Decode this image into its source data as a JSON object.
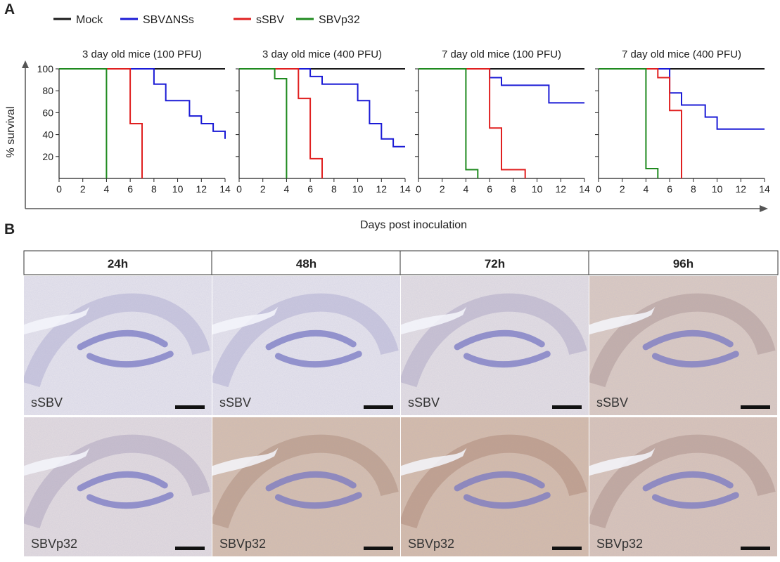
{
  "panels": {
    "a_letter": "A",
    "b_letter": "B"
  },
  "legend": [
    {
      "name": "Mock",
      "color": "#1a1a1a"
    },
    {
      "name": "SBVΔNSs",
      "color": "#1b1bd6"
    },
    {
      "name": "sSBV",
      "color": "#e02020"
    },
    {
      "name": "SBVp32",
      "color": "#1f8a1f"
    }
  ],
  "axes": {
    "ylabel": "% survival",
    "xlabel": "Days post inoculation"
  },
  "chart_data": [
    {
      "type": "line",
      "title": "3 day old mice (100 PFU)",
      "xlim": [
        0,
        14
      ],
      "ylim": [
        0,
        100
      ],
      "x_ticks": [
        "0",
        "2",
        "4",
        "6",
        "8",
        "10",
        "12",
        "14"
      ],
      "y_ticks": [
        "20",
        "40",
        "60",
        "80",
        "100"
      ],
      "series": [
        {
          "name": "Mock",
          "color": "#1a1a1a",
          "points": [
            [
              0,
              100
            ],
            [
              14,
              100
            ]
          ]
        },
        {
          "name": "SBVΔNSs",
          "color": "#1b1bd6",
          "points": [
            [
              0,
              100
            ],
            [
              8,
              100
            ],
            [
              8,
              86
            ],
            [
              9,
              86
            ],
            [
              9,
              71
            ],
            [
              11,
              71
            ],
            [
              11,
              57
            ],
            [
              12,
              57
            ],
            [
              12,
              50
            ],
            [
              13,
              50
            ],
            [
              13,
              43
            ],
            [
              14,
              43
            ],
            [
              14,
              36
            ]
          ]
        },
        {
          "name": "sSBV",
          "color": "#e02020",
          "points": [
            [
              0,
              100
            ],
            [
              6,
              100
            ],
            [
              6,
              50
            ],
            [
              7,
              50
            ],
            [
              7,
              0
            ]
          ]
        },
        {
          "name": "SBVp32",
          "color": "#1f8a1f",
          "points": [
            [
              0,
              100
            ],
            [
              4,
              100
            ],
            [
              4,
              0
            ]
          ]
        }
      ]
    },
    {
      "type": "line",
      "title": "3 day old mice (400 PFU)",
      "xlim": [
        0,
        14
      ],
      "ylim": [
        0,
        100
      ],
      "x_ticks": [
        "0",
        "2",
        "4",
        "6",
        "8",
        "10",
        "12",
        "14"
      ],
      "series": [
        {
          "name": "Mock",
          "color": "#1a1a1a",
          "points": [
            [
              0,
              100
            ],
            [
              14,
              100
            ]
          ]
        },
        {
          "name": "SBVΔNSs",
          "color": "#1b1bd6",
          "points": [
            [
              0,
              100
            ],
            [
              6,
              100
            ],
            [
              6,
              93
            ],
            [
              7,
              93
            ],
            [
              7,
              86
            ],
            [
              10,
              86
            ],
            [
              10,
              71
            ],
            [
              11,
              71
            ],
            [
              11,
              50
            ],
            [
              12,
              50
            ],
            [
              12,
              36
            ],
            [
              13,
              36
            ],
            [
              13,
              29
            ],
            [
              14,
              29
            ]
          ]
        },
        {
          "name": "sSBV",
          "color": "#e02020",
          "points": [
            [
              0,
              100
            ],
            [
              5,
              100
            ],
            [
              5,
              73
            ],
            [
              6,
              73
            ],
            [
              6,
              18
            ],
            [
              7,
              18
            ],
            [
              7,
              0
            ]
          ]
        },
        {
          "name": "SBVp32",
          "color": "#1f8a1f",
          "points": [
            [
              0,
              100
            ],
            [
              3,
              100
            ],
            [
              3,
              91
            ],
            [
              4,
              91
            ],
            [
              4,
              0
            ]
          ]
        }
      ]
    },
    {
      "type": "line",
      "title": "7 day old mice (100 PFU)",
      "xlim": [
        0,
        14
      ],
      "ylim": [
        0,
        100
      ],
      "x_ticks": [
        "0",
        "2",
        "4",
        "6",
        "8",
        "10",
        "12",
        "14"
      ],
      "series": [
        {
          "name": "Mock",
          "color": "#1a1a1a",
          "points": [
            [
              0,
              100
            ],
            [
              14,
              100
            ]
          ]
        },
        {
          "name": "SBVΔNSs",
          "color": "#1b1bd6",
          "points": [
            [
              0,
              100
            ],
            [
              6,
              100
            ],
            [
              6,
              92
            ],
            [
              7,
              92
            ],
            [
              7,
              85
            ],
            [
              11,
              85
            ],
            [
              11,
              69
            ],
            [
              14,
              69
            ]
          ]
        },
        {
          "name": "sSBV",
          "color": "#e02020",
          "points": [
            [
              0,
              100
            ],
            [
              6,
              100
            ],
            [
              6,
              46
            ],
            [
              7,
              46
            ],
            [
              7,
              8
            ],
            [
              9,
              8
            ],
            [
              9,
              0
            ]
          ]
        },
        {
          "name": "SBVp32",
          "color": "#1f8a1f",
          "points": [
            [
              0,
              100
            ],
            [
              4,
              100
            ],
            [
              4,
              8
            ],
            [
              5,
              8
            ],
            [
              5,
              0
            ]
          ]
        }
      ]
    },
    {
      "type": "line",
      "title": "7 day old mice (400 PFU)",
      "xlim": [
        0,
        14
      ],
      "ylim": [
        0,
        100
      ],
      "x_ticks": [
        "0",
        "2",
        "4",
        "6",
        "8",
        "10",
        "12",
        "14"
      ],
      "series": [
        {
          "name": "Mock",
          "color": "#1a1a1a",
          "points": [
            [
              0,
              100
            ],
            [
              14,
              100
            ]
          ]
        },
        {
          "name": "SBVΔNSs",
          "color": "#1b1bd6",
          "points": [
            [
              0,
              100
            ],
            [
              6,
              100
            ],
            [
              6,
              78
            ],
            [
              7,
              78
            ],
            [
              7,
              67
            ],
            [
              9,
              67
            ],
            [
              9,
              56
            ],
            [
              10,
              56
            ],
            [
              10,
              45
            ],
            [
              14,
              45
            ]
          ]
        },
        {
          "name": "sSBV",
          "color": "#e02020",
          "points": [
            [
              0,
              100
            ],
            [
              5,
              100
            ],
            [
              5,
              92
            ],
            [
              6,
              92
            ],
            [
              6,
              62
            ],
            [
              7,
              62
            ],
            [
              7,
              0
            ]
          ]
        },
        {
          "name": "SBVp32",
          "color": "#1f8a1f",
          "points": [
            [
              0,
              100
            ],
            [
              4,
              100
            ],
            [
              4,
              9
            ],
            [
              5,
              9
            ],
            [
              5,
              0
            ]
          ]
        }
      ]
    }
  ],
  "micrographs": {
    "time_points": [
      "24h",
      "48h",
      "72h",
      "96h"
    ],
    "rows": [
      {
        "label": "sSBV",
        "stain_intensity": [
          0.05,
          0.05,
          0.15,
          0.5
        ]
      },
      {
        "label": "SBVp32",
        "stain_intensity": [
          0.2,
          0.7,
          0.75,
          0.6
        ]
      }
    ]
  }
}
